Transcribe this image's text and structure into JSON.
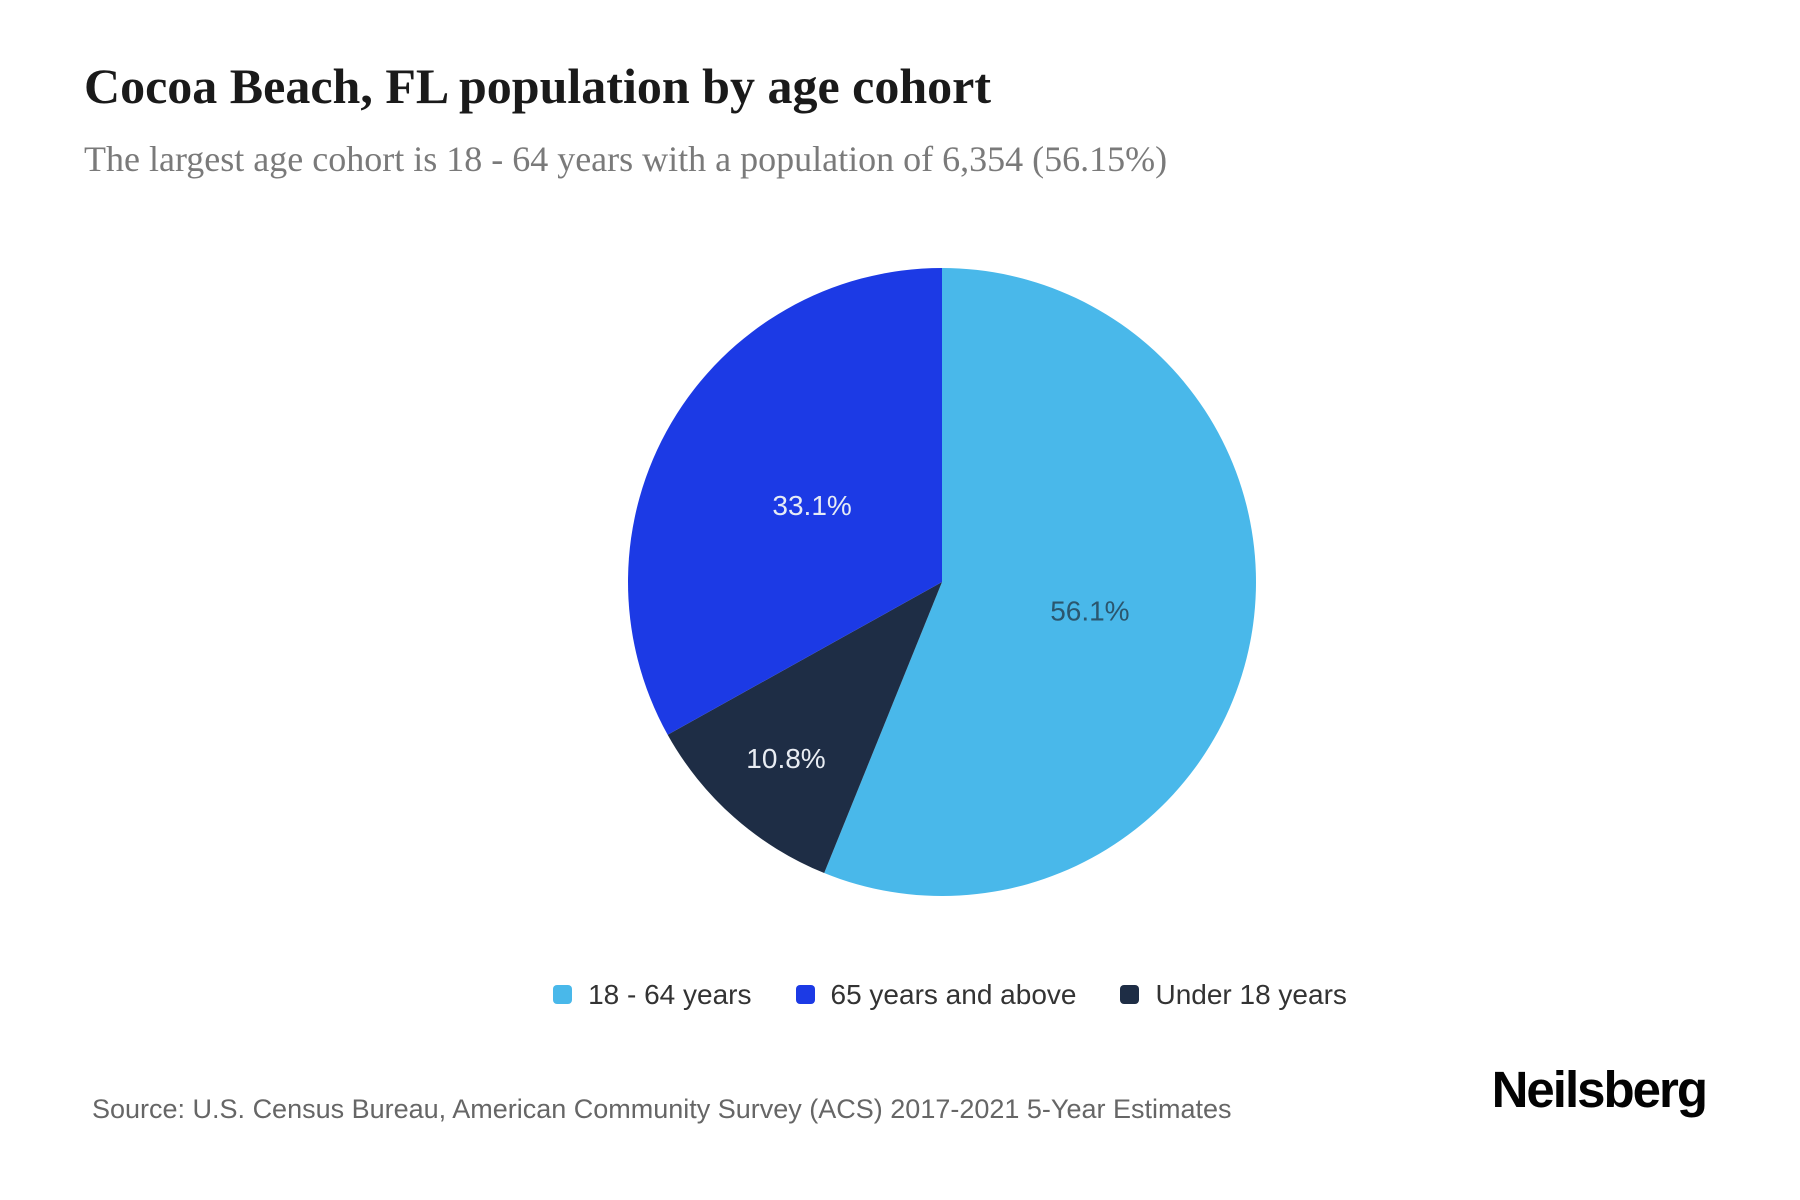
{
  "header": {
    "title": "Cocoa Beach, FL population by age cohort",
    "subtitle": "The largest age cohort is 18 - 64 years with a population of 6,354 (56.15%)"
  },
  "chart_data": {
    "type": "pie",
    "title": "Cocoa Beach, FL population by age cohort",
    "slices": [
      {
        "label": "18 - 64 years",
        "value_pct": 56.15,
        "display": "56.1%",
        "color": "#49b8ea",
        "label_color": "#2b566e"
      },
      {
        "label": "65 years and above",
        "value_pct": 33.1,
        "display": "33.1%",
        "color": "#1c3ae5",
        "label_color": "#e6ebf5"
      },
      {
        "label": "Under 18 years",
        "value_pct": 10.8,
        "display": "10.8%",
        "color": "#1e2d45",
        "label_color": "#e9edf3"
      }
    ],
    "draw_order": [
      0,
      2,
      1
    ],
    "start_angle_deg": 0,
    "direction": "clockwise",
    "legend_position": "bottom-center",
    "largest_cohort": {
      "name": "18 - 64 years",
      "population": "6,354",
      "share": "56.15%"
    }
  },
  "footer": {
    "source": "Source: U.S. Census Bureau, American Community Survey (ACS) 2017-2021 5-Year Estimates",
    "brand": "Neilsberg"
  },
  "style": {
    "background": "#ffffff",
    "title_color": "#1a1a1a",
    "subtitle_color": "#7a7a7a",
    "legend_text_color": "#333333",
    "source_text_color": "#666666"
  }
}
